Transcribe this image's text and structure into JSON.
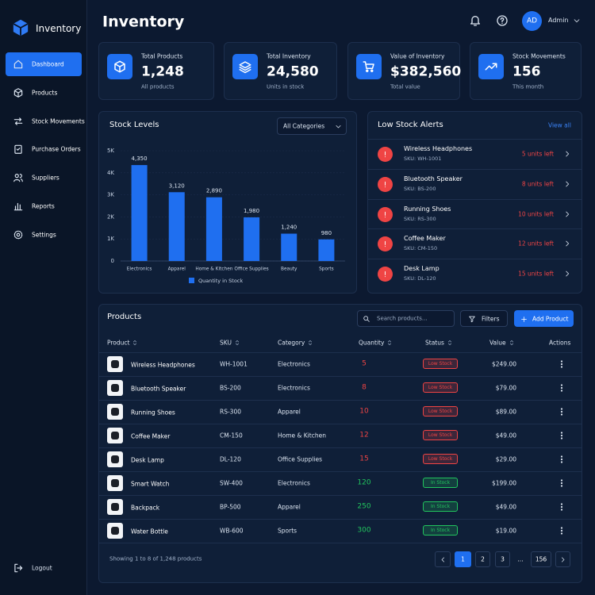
{
  "brand": "Inventory",
  "nav": [
    "Dashboard",
    "Products",
    "Stock Movements",
    "Purchase Orders",
    "Suppliers",
    "Reports",
    "Settings"
  ],
  "logout": "Logout",
  "header": {
    "title": "Inventory",
    "avatar": "AD",
    "user": "Admin"
  },
  "cards": [
    {
      "label": "Total Products",
      "value": "1,248",
      "sub": "All products"
    },
    {
      "label": "Total Inventory",
      "value": "24,580",
      "sub": "Units in stock"
    },
    {
      "label": "Value of Inventory",
      "value": "$382,560",
      "sub": "Total value"
    },
    {
      "label": "Stock Movements",
      "value": "156",
      "sub": "This month"
    }
  ],
  "chart_data": {
    "type": "bar",
    "title": "Stock Levels",
    "filter": "All Categories",
    "categories": [
      "Electronics",
      "Apparel",
      "Home & Kitchen",
      "Office Supplies",
      "Beauty",
      "Sports"
    ],
    "series": [
      {
        "name": "Quantity in Stock",
        "color": "#1f6ff0",
        "values": [
          4350,
          3120,
          2890,
          1980,
          1240,
          980
        ],
        "value_labels": [
          "4,350",
          "3,120",
          "2,890",
          "1,980",
          "1,240",
          "980"
        ]
      }
    ],
    "ylim": [
      0,
      5000
    ],
    "yticks": [
      0,
      {
        "value": 1000,
        "label": "1K"
      },
      {
        "value": 2000,
        "label": "2K"
      },
      {
        "value": 3000,
        "label": "3K"
      },
      {
        "value": 4000,
        "label": "4K"
      },
      {
        "value": 5000,
        "label": "5K"
      }
    ],
    "grid": true
  },
  "alerts": {
    "title": "Low Stock Alerts",
    "link": "View all",
    "items": [
      {
        "name": "Wireless Headphones",
        "sku": "SKU: WH-1001",
        "status": "5 units left"
      },
      {
        "name": "Bluetooth Speaker",
        "sku": "SKU: BS-200",
        "status": "8 units left"
      },
      {
        "name": "Running Shoes",
        "sku": "SKU: RS-300",
        "status": "10 units left"
      },
      {
        "name": "Coffee Maker",
        "sku": "SKU: CM-150",
        "status": "12 units left"
      },
      {
        "name": "Desk Lamp",
        "sku": "SKU: DL-120",
        "status": "15 units left"
      }
    ]
  },
  "products": {
    "title": "Products",
    "search": "Search products...",
    "filters": "Filters",
    "add": "Add Product",
    "columns": [
      "Product",
      "SKU",
      "Category",
      "Quantity",
      "Status",
      "Value",
      "Actions"
    ],
    "rows": [
      {
        "name": "Wireless Headphones",
        "sku": "WH-1001",
        "category": "Electronics",
        "quantity": 5,
        "status": "Low Stock",
        "value": "$249.00",
        "color": "#ef4444"
      },
      {
        "name": "Bluetooth Speaker",
        "sku": "BS-200",
        "category": "Electronics",
        "quantity": 8,
        "status": "Low Stock",
        "value": "$79.00",
        "color": "#ef4444"
      },
      {
        "name": "Running Shoes",
        "sku": "RS-300",
        "category": "Apparel",
        "quantity": 10,
        "status": "Low Stock",
        "value": "$89.00",
        "color": "#ef4444"
      },
      {
        "name": "Coffee Maker",
        "sku": "CM-150",
        "category": "Home & Kitchen",
        "quantity": 12,
        "status": "Low Stock",
        "value": "$49.00",
        "color": "#ef4444"
      },
      {
        "name": "Desk Lamp",
        "sku": "DL-120",
        "category": "Office Supplies",
        "quantity": 15,
        "status": "Low Stock",
        "value": "$29.00",
        "color": "#ef4444"
      },
      {
        "name": "Smart Watch",
        "sku": "SW-400",
        "category": "Electronics",
        "quantity": 120,
        "status": "In Stock",
        "value": "$199.00",
        "color": "#22c55e"
      },
      {
        "name": "Backpack",
        "sku": "BP-500",
        "category": "Apparel",
        "quantity": 250,
        "status": "In Stock",
        "value": "$49.00",
        "color": "#22c55e"
      },
      {
        "name": "Water Bottle",
        "sku": "WB-600",
        "category": "Sports",
        "quantity": 300,
        "status": "In Stock",
        "value": "$19.00",
        "color": "#22c55e"
      }
    ],
    "footer": "Showing 1 to 8 of 1,248 products",
    "pages": [
      "1",
      "2",
      "3",
      "...",
      "156"
    ]
  }
}
